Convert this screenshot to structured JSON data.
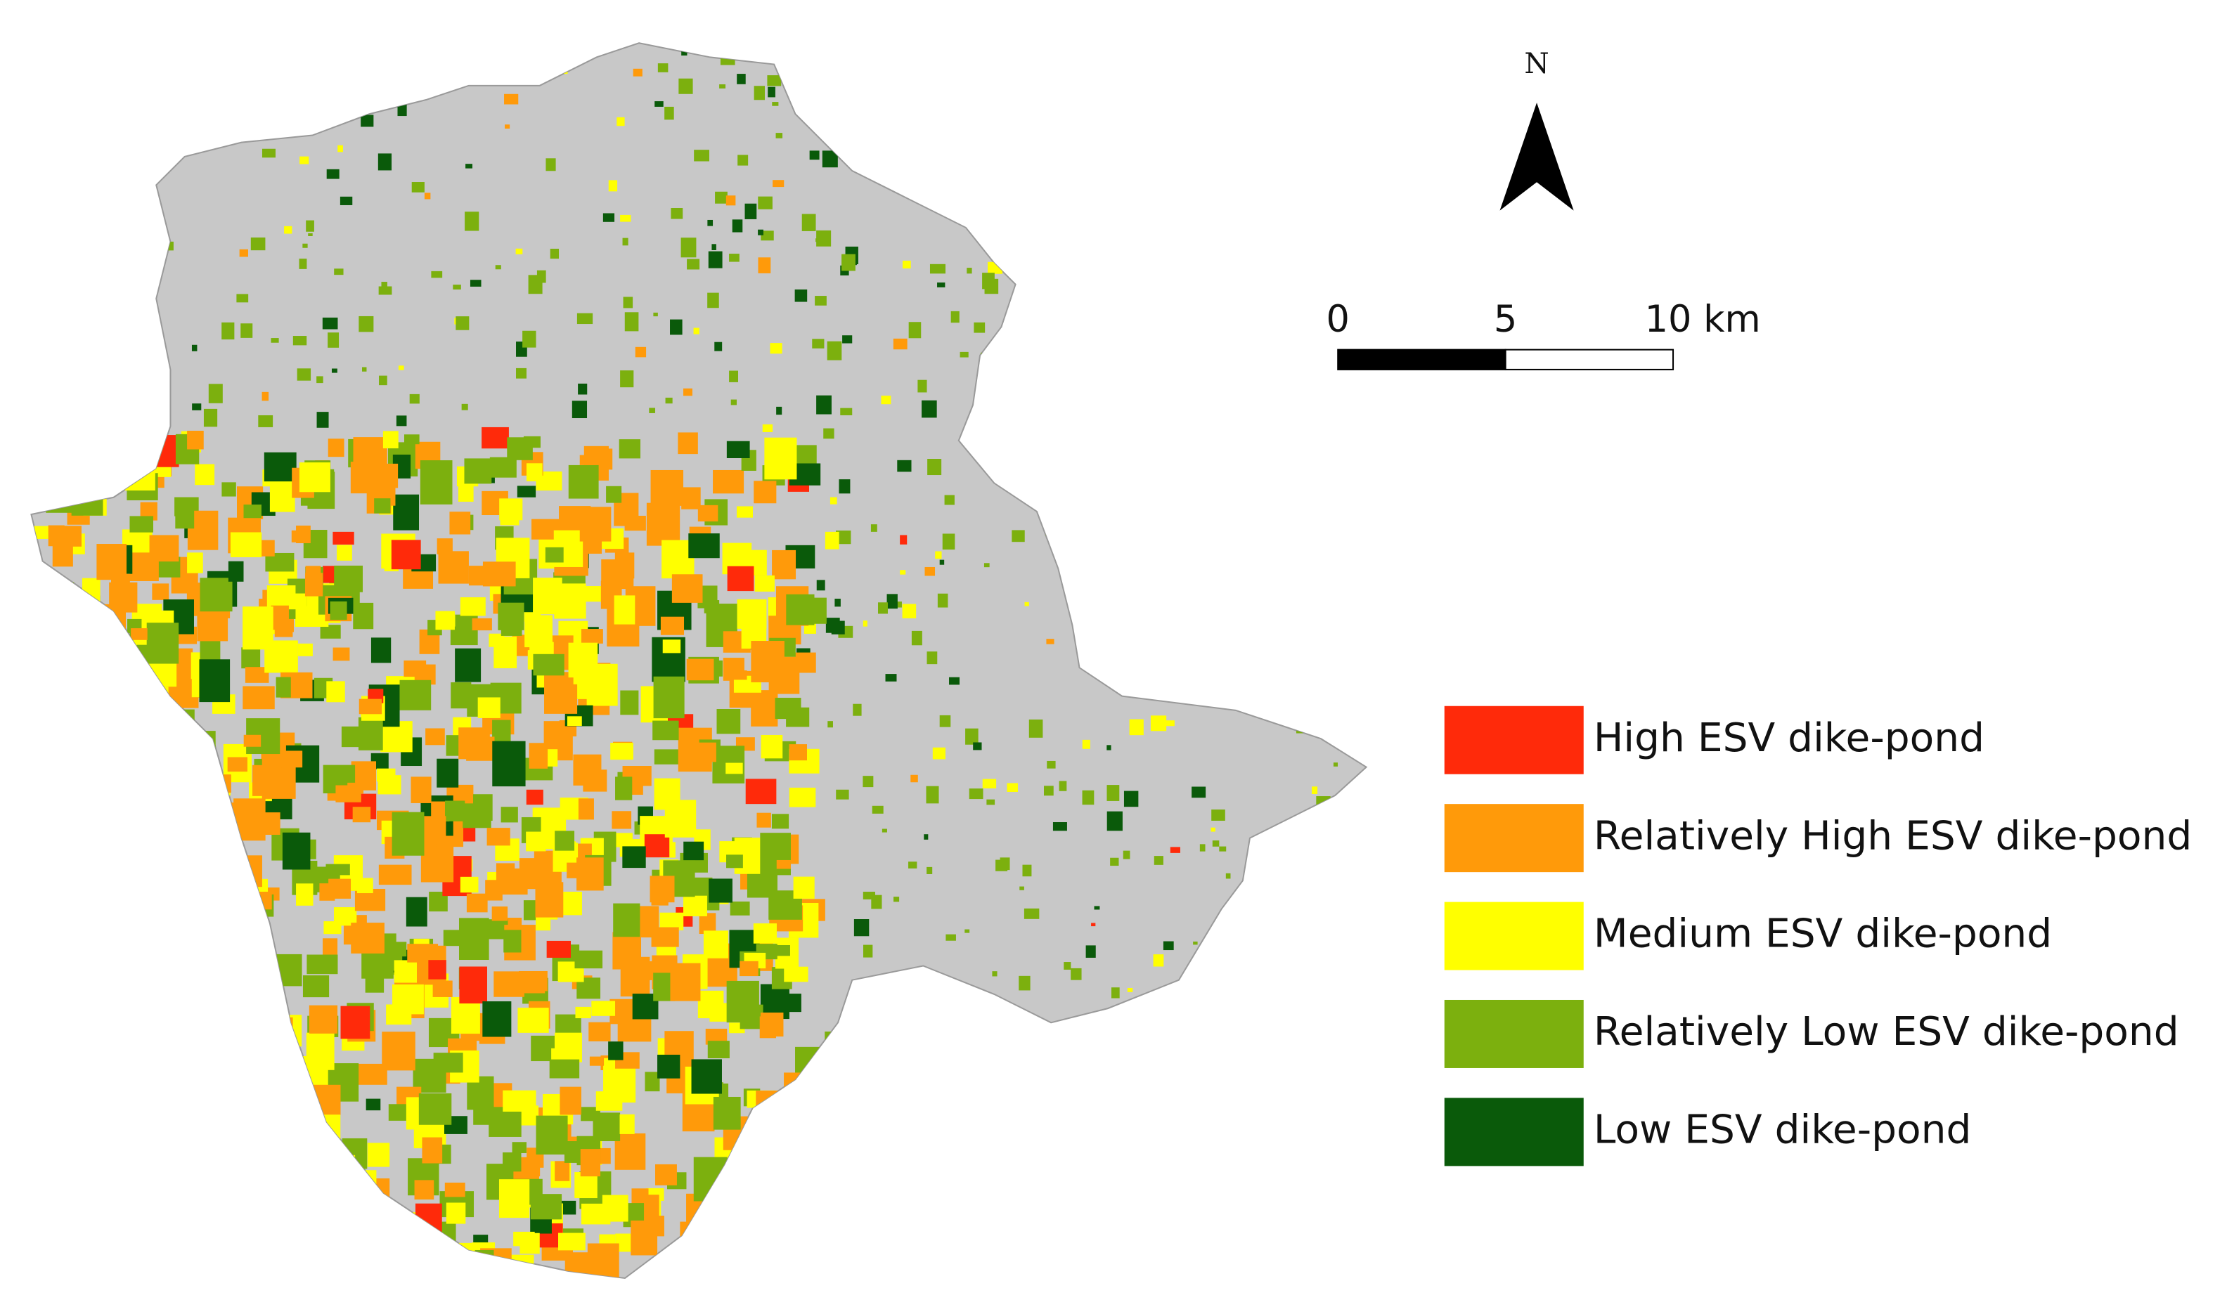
{
  "north_arrow": {
    "label": "N"
  },
  "scale_bar": {
    "labels": [
      "0",
      "5",
      "10 km"
    ]
  },
  "legend": {
    "items": [
      {
        "label": "High ESV dike-pond",
        "color": "#ff2a0a"
      },
      {
        "label": "Relatively High ESV dike-pond",
        "color": "#ff9a0a"
      },
      {
        "label": "Medium ESV dike-pond",
        "color": "#ffff00"
      },
      {
        "label": "Relatively Low ESV dike-pond",
        "color": "#7cb00e"
      },
      {
        "label": "Low ESV dike-pond",
        "color": "#0a5a0a"
      }
    ]
  }
}
